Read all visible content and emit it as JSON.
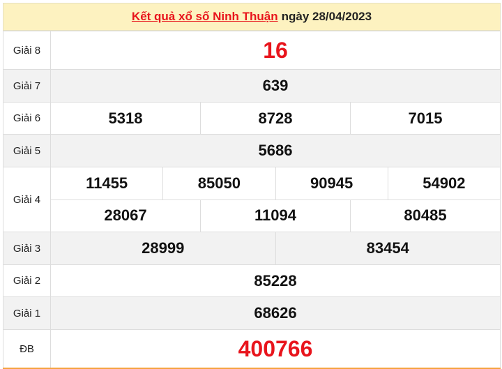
{
  "header": {
    "title_link": "Kết quả xổ số Ninh Thuận",
    "title_date": "ngày 28/04/2023"
  },
  "colors": {
    "accent_red": "#e8141c",
    "header_bg": "#fdf2c0",
    "bottom_border": "#f5a33e"
  },
  "prizes": [
    {
      "label": "Giải 8",
      "rows": [
        [
          "16"
        ]
      ]
    },
    {
      "label": "Giải 7",
      "rows": [
        [
          "639"
        ]
      ]
    },
    {
      "label": "Giải 6",
      "rows": [
        [
          "5318",
          "8728",
          "7015"
        ]
      ]
    },
    {
      "label": "Giải 5",
      "rows": [
        [
          "5686"
        ]
      ]
    },
    {
      "label": "Giải 4",
      "rows": [
        [
          "11455",
          "85050",
          "90945",
          "54902"
        ],
        [
          "28067",
          "11094",
          "80485"
        ]
      ]
    },
    {
      "label": "Giải 3",
      "rows": [
        [
          "28999",
          "83454"
        ]
      ]
    },
    {
      "label": "Giải 2",
      "rows": [
        [
          "85228"
        ]
      ]
    },
    {
      "label": "Giải 1",
      "rows": [
        [
          "68626"
        ]
      ]
    },
    {
      "label": "ĐB",
      "rows": [
        [
          "400766"
        ]
      ]
    }
  ]
}
